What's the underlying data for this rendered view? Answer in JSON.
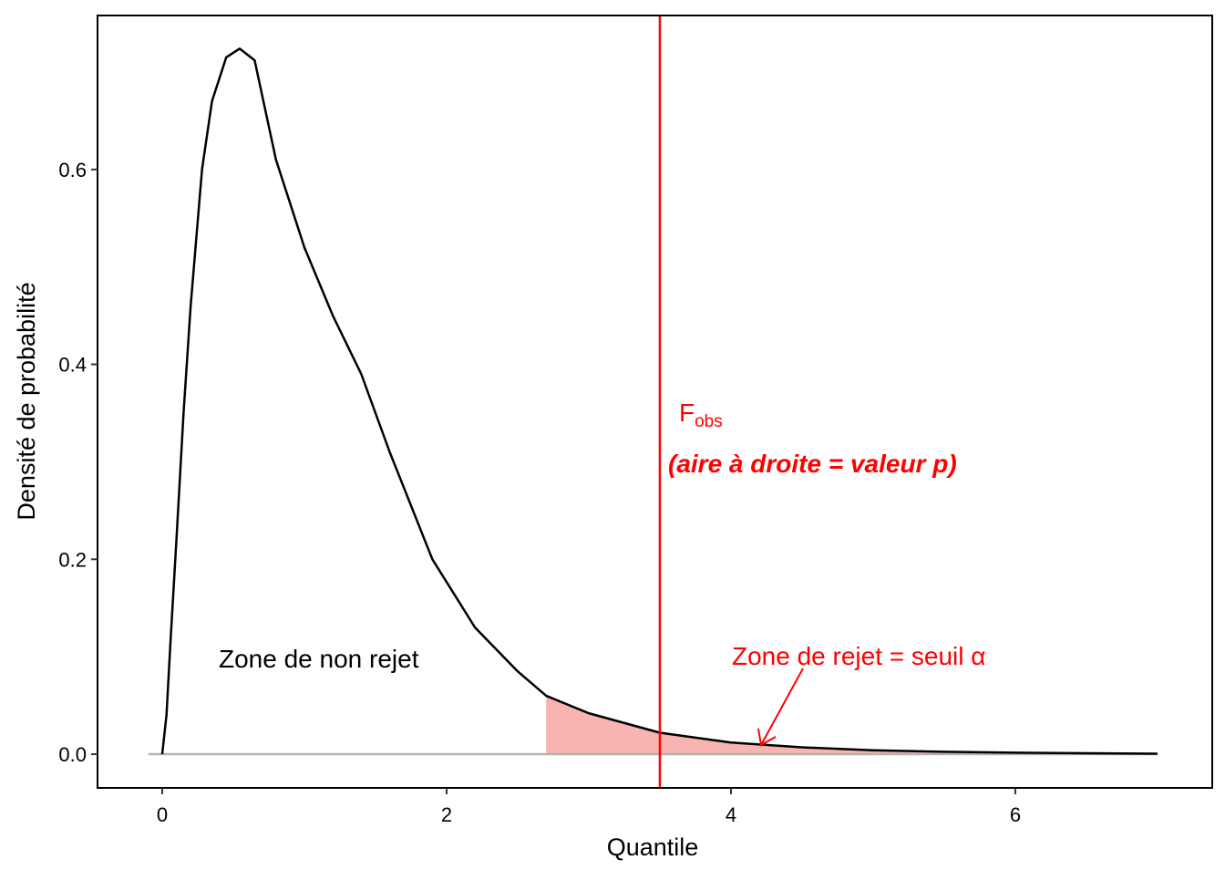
{
  "chart_data": {
    "type": "line",
    "x_label": "Quantile",
    "y_label": "Densité de probabilité",
    "x": [
      0,
      0.03,
      0.06,
      0.1,
      0.15,
      0.2,
      0.28,
      0.35,
      0.45,
      0.545,
      0.65,
      0.8,
      1,
      1.2,
      1.4,
      1.6,
      1.9,
      2.2,
      2.5,
      2.7,
      3,
      3.5,
      4,
      4.2,
      4.5,
      5,
      5.5,
      6,
      6.5,
      7
    ],
    "values": [
      0,
      0.04,
      0.12,
      0.22,
      0.35,
      0.46,
      0.6,
      0.67,
      0.715,
      0.724,
      0.712,
      0.61,
      0.52,
      0.45,
      0.39,
      0.31,
      0.2,
      0.13,
      0.085,
      0.06,
      0.042,
      0.022,
      0.012,
      0.01,
      0.007,
      0.004,
      0.0025,
      0.0015,
      0.001,
      0.0005
    ],
    "color": "#000000",
    "rejection_threshold": 2.7,
    "shade_color": "#f8b4b0",
    "f_obs": 3.5,
    "f_obs_color": "#ff0000",
    "xlim": [
      -0.455,
      7.385
    ],
    "ylim": [
      -0.0346,
      0.758
    ],
    "xticks": [
      0,
      2,
      4,
      6
    ],
    "yticks": [
      {
        "value": 0,
        "label": "0.0"
      },
      0.2,
      0.4,
      0.6
    ],
    "annotations": {
      "non_rejection": "Zone de non rejet",
      "f_symbol": "F",
      "f_subscript": "obs",
      "p_value_note": "(aire à droite = valeur p)",
      "rejection": "Zone de rejet = seuil α"
    }
  }
}
